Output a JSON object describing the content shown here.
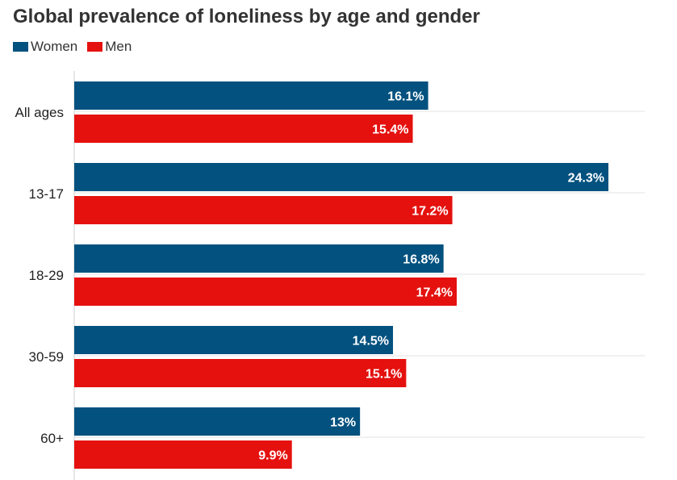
{
  "chart_data": {
    "type": "bar",
    "orientation": "horizontal",
    "title": "Global prevalence of loneliness by age and gender",
    "categories": [
      "All ages",
      "13-17",
      "18-29",
      "30-59",
      "60+"
    ],
    "series": [
      {
        "name": "Women",
        "color": "#02517f",
        "values": [
          16.1,
          24.3,
          16.8,
          14.5,
          13
        ],
        "labels": [
          "16.1%",
          "24.3%",
          "16.8%",
          "14.5%",
          "13%"
        ]
      },
      {
        "name": "Men",
        "color": "#e4110e",
        "values": [
          15.4,
          17.2,
          17.4,
          15.1,
          9.9
        ],
        "labels": [
          "15.4%",
          "17.2%",
          "17.4%",
          "15.1%",
          "9.9%"
        ]
      }
    ],
    "xlim": [
      0,
      26
    ],
    "grid": true,
    "legend_position": "top-left"
  }
}
